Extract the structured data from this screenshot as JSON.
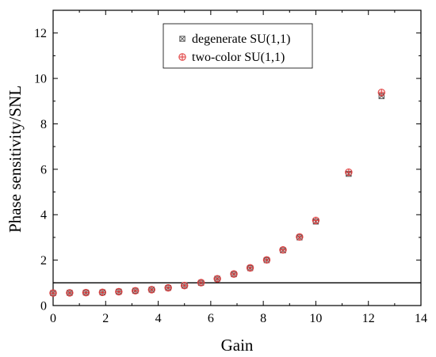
{
  "chart_data": {
    "type": "scatter",
    "xlabel": "Gain",
    "ylabel": "Phase sensitivity/SNL",
    "xlim": [
      0,
      14
    ],
    "ylim": [
      0,
      13
    ],
    "xticks": [
      0,
      2,
      4,
      6,
      8,
      10,
      12,
      14
    ],
    "yticks": [
      0,
      2,
      4,
      6,
      8,
      10,
      12
    ],
    "grid": false,
    "legend_position": "top-center",
    "reference_line": {
      "y": 1,
      "color": "#000000"
    },
    "series": [
      {
        "name": "degenerate SU(1,1)",
        "marker": "square-x",
        "color": "#555555",
        "x": [
          0,
          0.63,
          1.25,
          1.88,
          2.5,
          3.13,
          3.75,
          4.38,
          5.0,
          5.63,
          6.25,
          6.88,
          7.5,
          8.13,
          8.75,
          9.38,
          10.0,
          11.25,
          12.5
        ],
        "y": [
          0.55,
          0.56,
          0.57,
          0.58,
          0.61,
          0.65,
          0.7,
          0.78,
          0.88,
          1.0,
          1.18,
          1.38,
          1.65,
          2.0,
          2.43,
          3.0,
          3.7,
          5.8,
          9.22
        ]
      },
      {
        "name": "two-color SU(1,1)",
        "marker": "circle-plus",
        "color": "#e03c3c",
        "x": [
          0,
          0.63,
          1.25,
          1.88,
          2.5,
          3.13,
          3.75,
          4.38,
          5.0,
          5.63,
          6.25,
          6.88,
          7.5,
          8.13,
          8.75,
          9.38,
          10.0,
          11.25,
          12.5
        ],
        "y": [
          0.55,
          0.56,
          0.57,
          0.58,
          0.61,
          0.65,
          0.7,
          0.78,
          0.88,
          1.01,
          1.18,
          1.39,
          1.66,
          2.01,
          2.45,
          3.02,
          3.75,
          5.87,
          9.38
        ]
      }
    ]
  }
}
